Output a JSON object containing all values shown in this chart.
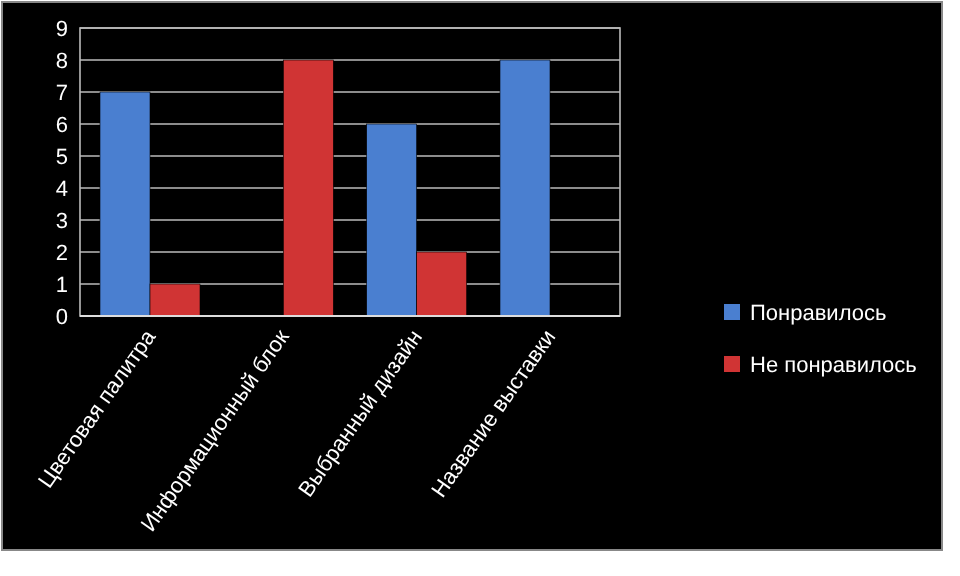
{
  "chart_data": {
    "type": "bar",
    "categories": [
      "Цветовая палитра",
      "Информационный блок",
      "Выбранный дизайн",
      "Название выставки"
    ],
    "series": [
      {
        "name": "Понравилось",
        "color": "#4a7fd0",
        "values": [
          7,
          null,
          6,
          8
        ]
      },
      {
        "name": "Не понравилось",
        "color": "#d03434",
        "values": [
          1,
          8,
          2,
          null
        ]
      }
    ],
    "ylim": [
      0,
      9
    ],
    "yticks": [
      0,
      1,
      2,
      3,
      4,
      5,
      6,
      7,
      8,
      9
    ],
    "grid": "y",
    "legend": "right"
  }
}
